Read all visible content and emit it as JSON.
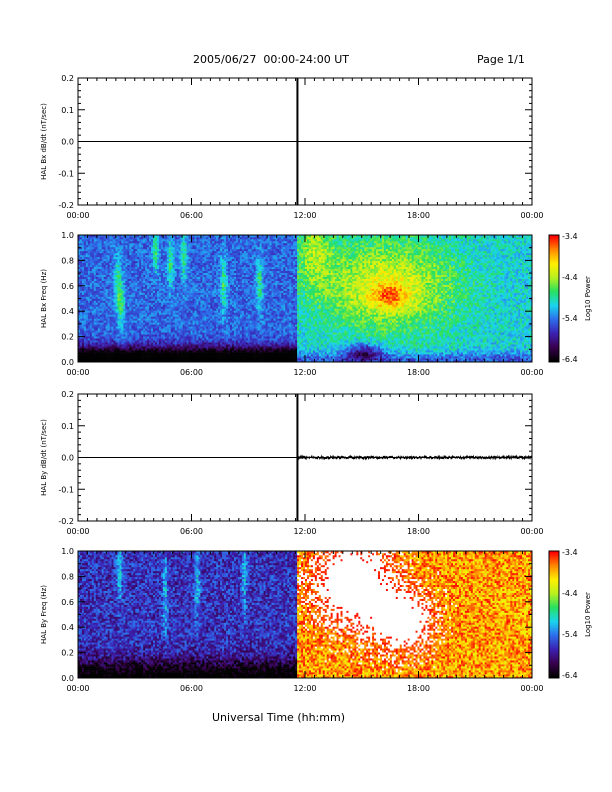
{
  "header": {
    "title": "2005/06/27  00:00-24:00 UT",
    "page": "Page 1/1"
  },
  "xaxis_title": "Universal Time (hh:mm)",
  "time_ticks": [
    "00:00",
    "06:00",
    "12:00",
    "18:00",
    "00:00"
  ],
  "colorbar": {
    "label": "Log10 Power",
    "ticks": [
      "-3.4",
      "-4.4",
      "-5.4",
      "-6.4"
    ],
    "colors": [
      "#000000",
      "#3a0050",
      "#3b22b4",
      "#2d6eeb",
      "#1ad6ee",
      "#26e060",
      "#b8f020",
      "#fff000",
      "#ff8a00",
      "#ff0000"
    ]
  },
  "chart_data": [
    {
      "type": "line",
      "ylabel": "HAL Bx dB/dt (nT/sec)",
      "yticks": [
        "0.2",
        "0.1",
        "0.0",
        "-0.1",
        "-0.2"
      ],
      "ylim": [
        -0.2,
        0.2
      ],
      "xlim_hours": [
        0,
        24
      ],
      "baseline": 0.0,
      "spike": {
        "hour": 11.6,
        "min": -0.2,
        "max": 0.2
      },
      "noise_after_hour": null
    },
    {
      "type": "heatmap",
      "ylabel": "HAL Bx Freq (Hz)",
      "yticks": [
        "1.0",
        "0.8",
        "0.6",
        "0.4",
        "0.2",
        "0.0"
      ],
      "ylim": [
        0.0,
        1.0
      ],
      "xlim_hours": [
        0,
        24
      ],
      "zlim": [
        -6.4,
        -3.4
      ],
      "zlabel": "Log10 Power"
    },
    {
      "type": "line",
      "ylabel": "HAL By dB/dt (nT/sec)",
      "yticks": [
        "0.2",
        "0.1",
        "0.0",
        "-0.1",
        "-0.2"
      ],
      "ylim": [
        -0.2,
        0.2
      ],
      "xlim_hours": [
        0,
        24
      ],
      "baseline": 0.0,
      "spike": {
        "hour": 11.6,
        "min": -0.2,
        "max": 0.2
      },
      "noise_after_hour": 11.6
    },
    {
      "type": "heatmap",
      "ylabel": "HAL By Freq (Hz)",
      "yticks": [
        "1.0",
        "0.8",
        "0.6",
        "0.4",
        "0.2",
        "0.0"
      ],
      "ylim": [
        0.0,
        1.0
      ],
      "xlim_hours": [
        0,
        24
      ],
      "zlim": [
        -6.4,
        -3.4
      ],
      "zlabel": "Log10 Power"
    }
  ]
}
